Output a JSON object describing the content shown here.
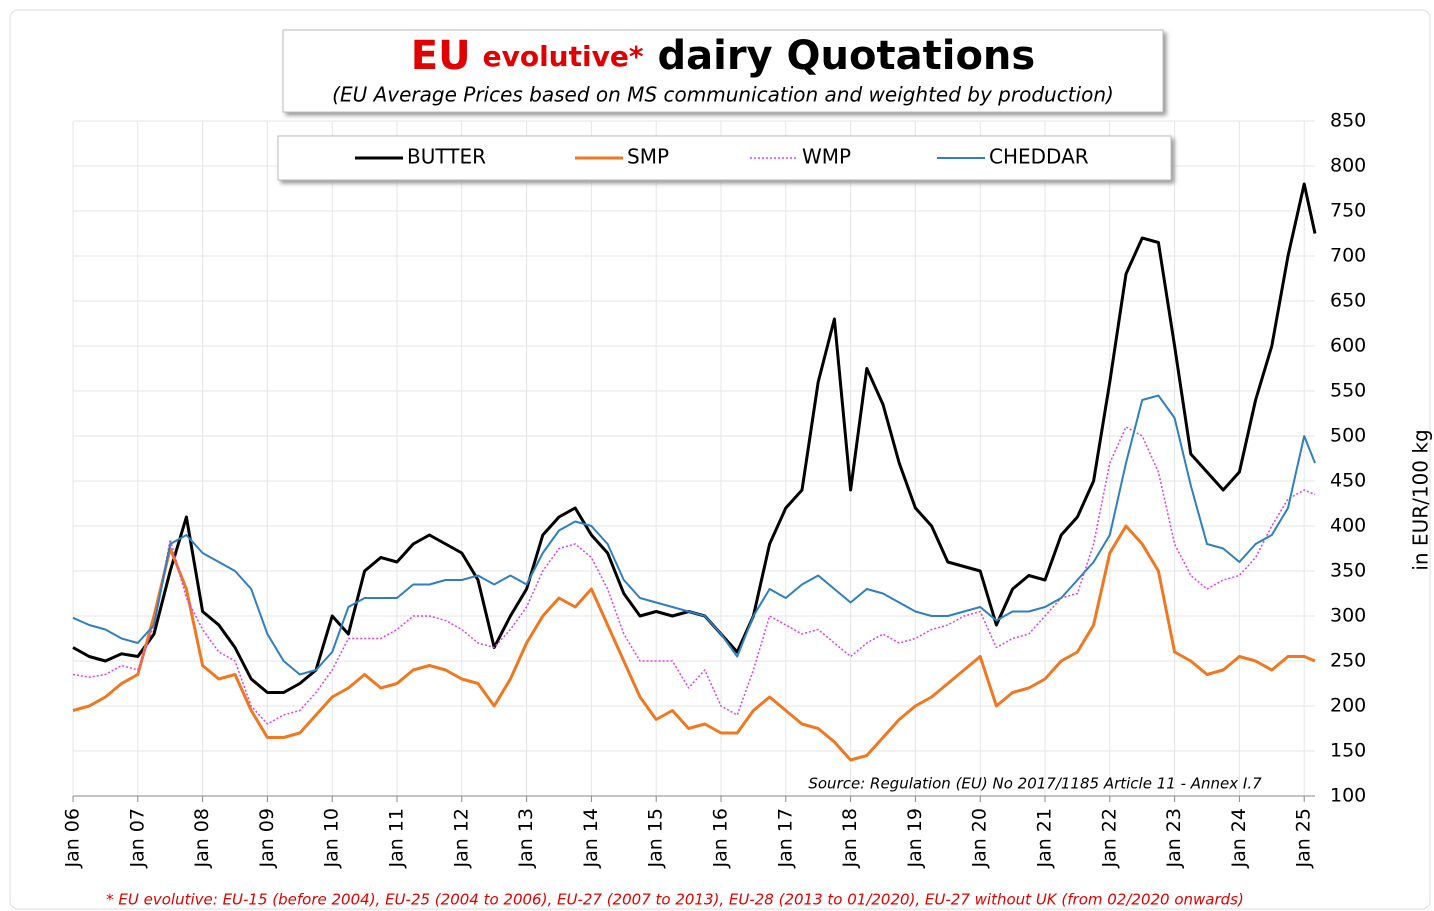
{
  "chart_data": {
    "type": "line",
    "title_parts": [
      "EU",
      "evolutive*",
      "dairy Quotations"
    ],
    "subtitle": "(EU Average Prices based on MS communication and weighted by production)",
    "y_axis_label": "in EUR/100 kg",
    "source": "Source: Regulation (EU) No 2017/1185 Article 11 - Annex I.7",
    "footnote": "* EU evolutive: EU-15 (before 2004), EU-25 (2004 to 2006), EU-27 (2007 to 2013), EU-28 (2013 to 01/2020), EU-27 without UK (from 02/2020 onwards)",
    "x": [
      "2006-01",
      "2006-04",
      "2006-07",
      "2006-10",
      "2007-01",
      "2007-04",
      "2007-07",
      "2007-10",
      "2008-01",
      "2008-04",
      "2008-07",
      "2008-10",
      "2009-01",
      "2009-04",
      "2009-07",
      "2009-10",
      "2010-01",
      "2010-04",
      "2010-07",
      "2010-10",
      "2011-01",
      "2011-04",
      "2011-07",
      "2011-10",
      "2012-01",
      "2012-04",
      "2012-07",
      "2012-10",
      "2013-01",
      "2013-04",
      "2013-07",
      "2013-10",
      "2014-01",
      "2014-04",
      "2014-07",
      "2014-10",
      "2015-01",
      "2015-04",
      "2015-07",
      "2015-10",
      "2016-01",
      "2016-04",
      "2016-07",
      "2016-10",
      "2017-01",
      "2017-04",
      "2017-07",
      "2017-10",
      "2018-01",
      "2018-04",
      "2018-07",
      "2018-10",
      "2019-01",
      "2019-04",
      "2019-07",
      "2019-10",
      "2020-01",
      "2020-04",
      "2020-07",
      "2020-10",
      "2021-01",
      "2021-04",
      "2021-07",
      "2021-10",
      "2022-01",
      "2022-04",
      "2022-07",
      "2022-10",
      "2023-01",
      "2023-04",
      "2023-07",
      "2023-10",
      "2024-01",
      "2024-04",
      "2024-07",
      "2024-10",
      "2025-01",
      "2025-03"
    ],
    "series": [
      {
        "name": "BUTTER",
        "color": "#000000",
        "dash": "solid",
        "width": 3,
        "values": [
          265,
          255,
          250,
          258,
          255,
          280,
          350,
          410,
          305,
          290,
          265,
          230,
          215,
          215,
          225,
          240,
          300,
          280,
          350,
          365,
          360,
          380,
          390,
          380,
          370,
          340,
          265,
          300,
          330,
          390,
          410,
          420,
          390,
          370,
          325,
          300,
          305,
          300,
          305,
          300,
          280,
          260,
          300,
          380,
          420,
          440,
          560,
          630,
          440,
          575,
          535,
          470,
          420,
          400,
          360,
          355,
          350,
          290,
          330,
          345,
          340,
          390,
          410,
          450,
          560,
          680,
          720,
          715,
          600,
          480,
          460,
          440,
          460,
          540,
          600,
          700,
          780,
          725
        ]
      },
      {
        "name": "SMP",
        "color": "#f07820",
        "dash": "solid",
        "width": 3,
        "values": [
          195,
          200,
          210,
          225,
          235,
          300,
          375,
          330,
          245,
          230,
          235,
          195,
          165,
          165,
          170,
          190,
          210,
          220,
          235,
          220,
          225,
          240,
          245,
          240,
          230,
          225,
          200,
          230,
          270,
          300,
          320,
          310,
          330,
          290,
          250,
          210,
          185,
          195,
          175,
          180,
          170,
          170,
          195,
          210,
          195,
          180,
          175,
          160,
          140,
          145,
          165,
          185,
          200,
          210,
          225,
          240,
          255,
          200,
          215,
          220,
          230,
          250,
          260,
          290,
          370,
          400,
          380,
          350,
          260,
          250,
          235,
          240,
          255,
          250,
          240,
          255,
          255,
          250
        ]
      },
      {
        "name": "WMP",
        "color": "#e040e0",
        "dash": "dotted",
        "width": 1.5,
        "values": [
          235,
          232,
          235,
          245,
          240,
          290,
          385,
          320,
          285,
          260,
          250,
          200,
          180,
          190,
          195,
          215,
          240,
          275,
          275,
          275,
          285,
          300,
          300,
          295,
          285,
          270,
          265,
          285,
          310,
          350,
          375,
          380,
          365,
          330,
          280,
          250,
          250,
          250,
          220,
          240,
          200,
          190,
          240,
          300,
          290,
          280,
          285,
          270,
          255,
          270,
          280,
          270,
          275,
          285,
          290,
          300,
          305,
          265,
          275,
          280,
          300,
          320,
          325,
          380,
          470,
          510,
          500,
          460,
          380,
          345,
          330,
          340,
          345,
          365,
          400,
          430,
          440,
          435
        ]
      },
      {
        "name": "CHEDDAR",
        "color": "#2f7fc1",
        "dash": "solid",
        "width": 2,
        "values": [
          298,
          290,
          285,
          275,
          270,
          290,
          380,
          390,
          370,
          360,
          350,
          330,
          280,
          250,
          235,
          240,
          260,
          310,
          320,
          320,
          320,
          335,
          335,
          340,
          340,
          345,
          335,
          345,
          335,
          370,
          395,
          405,
          400,
          380,
          340,
          320,
          315,
          310,
          305,
          300,
          280,
          255,
          300,
          330,
          320,
          335,
          345,
          330,
          315,
          330,
          325,
          315,
          305,
          300,
          300,
          305,
          310,
          295,
          305,
          305,
          310,
          320,
          340,
          360,
          390,
          470,
          540,
          545,
          520,
          445,
          380,
          375,
          360,
          380,
          390,
          420,
          500,
          470
        ]
      }
    ],
    "xlim": [
      "2006-01",
      "2025-03"
    ],
    "xticks": [
      {
        "value": "2006-01",
        "label": "Jan 06"
      },
      {
        "value": "2007-01",
        "label": "Jan 07"
      },
      {
        "value": "2008-01",
        "label": "Jan 08"
      },
      {
        "value": "2009-01",
        "label": "Jan 09"
      },
      {
        "value": "2010-01",
        "label": "Jan 10"
      },
      {
        "value": "2011-01",
        "label": "Jan 11"
      },
      {
        "value": "2012-01",
        "label": "Jan 12"
      },
      {
        "value": "2013-01",
        "label": "Jan 13"
      },
      {
        "value": "2014-01",
        "label": "Jan 14"
      },
      {
        "value": "2015-01",
        "label": "Jan 15"
      },
      {
        "value": "2016-01",
        "label": "Jan 16"
      },
      {
        "value": "2017-01",
        "label": "Jan 17"
      },
      {
        "value": "2018-01",
        "label": "Jan 18"
      },
      {
        "value": "2019-01",
        "label": "Jan 19"
      },
      {
        "value": "2020-01",
        "label": "Jan 20"
      },
      {
        "value": "2021-01",
        "label": "Jan 21"
      },
      {
        "value": "2022-01",
        "label": "Jan 22"
      },
      {
        "value": "2023-01",
        "label": "Jan 23"
      },
      {
        "value": "2024-01",
        "label": "Jan 24"
      },
      {
        "value": "2025-01",
        "label": "Jan 25"
      }
    ],
    "ylim": [
      100,
      850
    ],
    "yticks": [
      100,
      150,
      200,
      250,
      300,
      350,
      400,
      450,
      500,
      550,
      600,
      650,
      700,
      750,
      800,
      850
    ],
    "grid": true
  }
}
